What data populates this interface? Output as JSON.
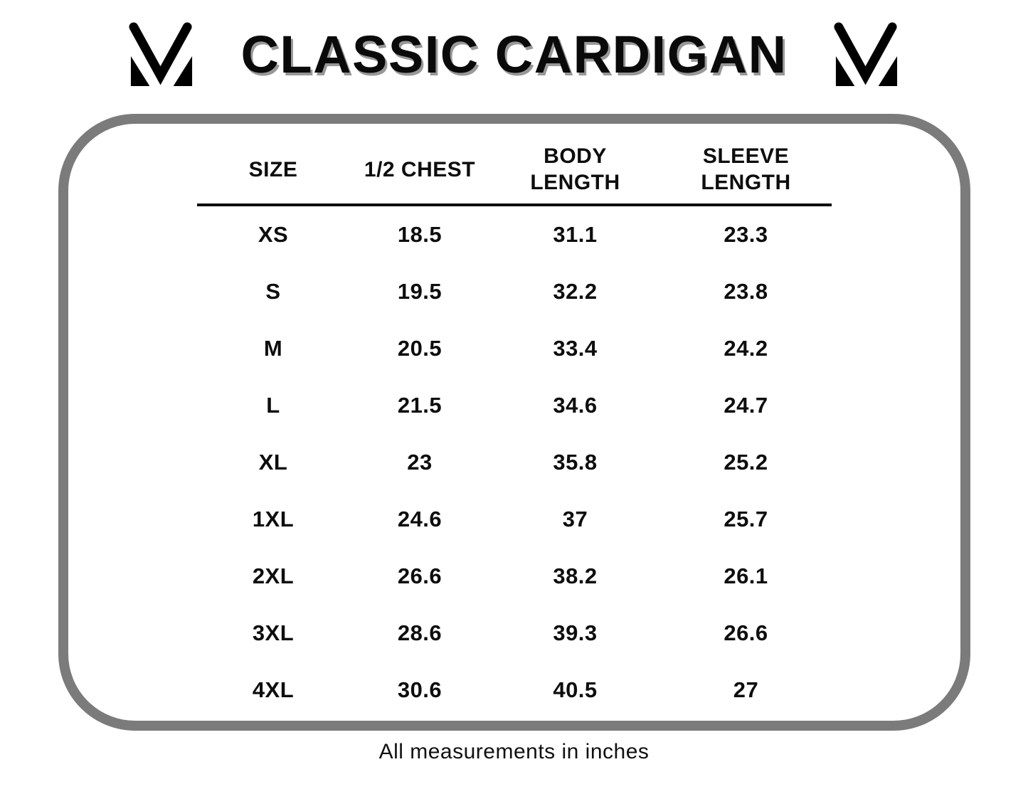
{
  "title": "CLASSIC CARDIGAN",
  "brand": {
    "logo_name": "mv-monogram"
  },
  "footer_note": "All measurements in inches",
  "colors": {
    "text": "#0d0d0d",
    "panel_border": "#7b7b7b",
    "title_shadow": "#989898",
    "logo": "#000000",
    "background": "#ffffff"
  },
  "chart_data": {
    "type": "table",
    "title": "CLASSIC CARDIGAN",
    "units": "inches",
    "columns": [
      "SIZE",
      "1/2 CHEST",
      "BODY LENGTH",
      "SLEEVE LENGTH"
    ],
    "rows": [
      [
        "XS",
        "18.5",
        "31.1",
        "23.3"
      ],
      [
        "S",
        "19.5",
        "32.2",
        "23.8"
      ],
      [
        "M",
        "20.5",
        "33.4",
        "24.2"
      ],
      [
        "L",
        "21.5",
        "34.6",
        "24.7"
      ],
      [
        "XL",
        "23",
        "35.8",
        "25.2"
      ],
      [
        "1XL",
        "24.6",
        "37",
        "25.7"
      ],
      [
        "2XL",
        "26.6",
        "38.2",
        "26.1"
      ],
      [
        "3XL",
        "28.6",
        "39.3",
        "26.6"
      ],
      [
        "4XL",
        "30.6",
        "40.5",
        "27"
      ]
    ],
    "note": "All measurements in inches"
  }
}
